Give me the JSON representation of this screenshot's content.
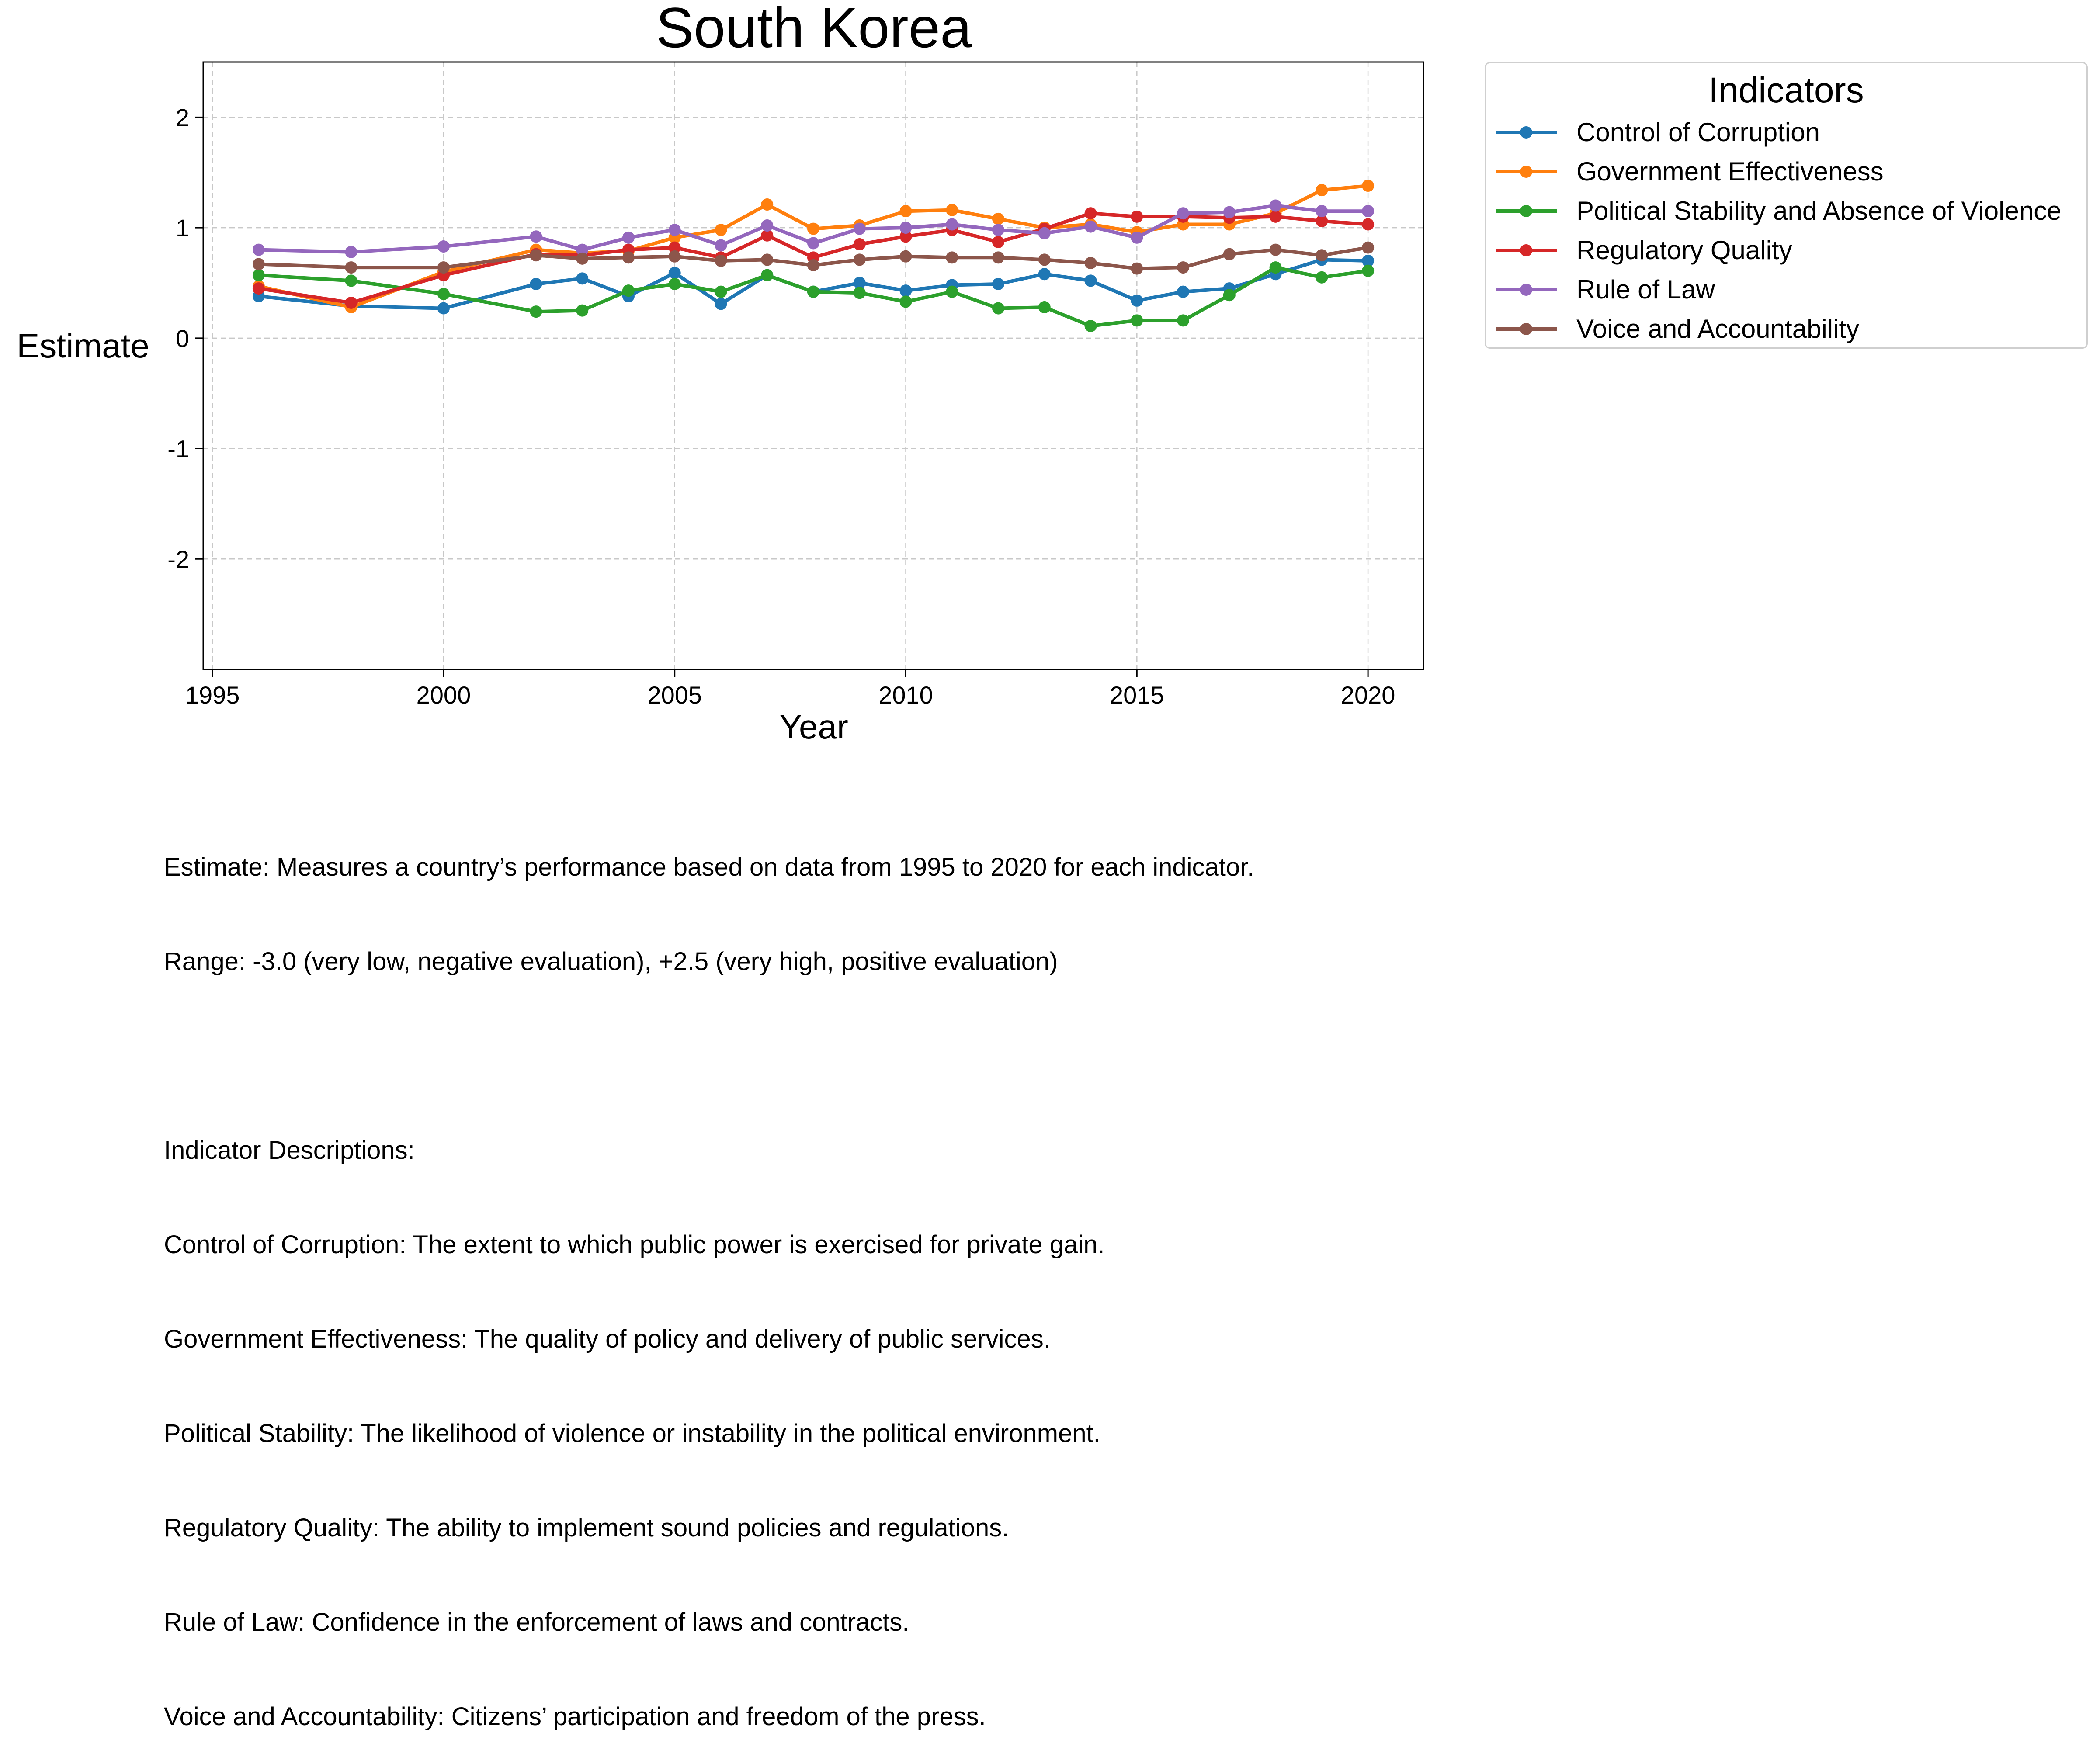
{
  "chart_data": {
    "type": "line",
    "title": "South Korea",
    "xlabel": "Year",
    "ylabel": "Estimate",
    "xlim": [
      1994.8,
      2021.2
    ],
    "ylim": [
      -3.0,
      2.5
    ],
    "x_ticks": [
      1995,
      2000,
      2005,
      2010,
      2015,
      2020
    ],
    "y_ticks": [
      -2,
      -1,
      0,
      1,
      2
    ],
    "x_tick_labels": [
      "1995",
      "2000",
      "2005",
      "2010",
      "2015",
      "2020"
    ],
    "y_tick_labels": [
      "-2",
      "-1",
      "0",
      "1",
      "2"
    ],
    "grid": true,
    "legend_title": "Indicators",
    "legend_placement": "outside-top-right",
    "x": [
      1996,
      1998,
      2000,
      2002,
      2003,
      2004,
      2005,
      2006,
      2007,
      2008,
      2009,
      2010,
      2011,
      2012,
      2013,
      2014,
      2015,
      2016,
      2017,
      2018,
      2019,
      2020
    ],
    "series": [
      {
        "name": "Control of Corruption",
        "color": "#1f77b4",
        "values": [
          0.38,
          0.29,
          0.27,
          0.49,
          0.54,
          0.38,
          0.59,
          0.31,
          0.57,
          0.42,
          0.5,
          0.43,
          0.48,
          0.49,
          0.58,
          0.52,
          0.34,
          0.42,
          0.45,
          0.58,
          0.71,
          0.7
        ]
      },
      {
        "name": "Government Effectiveness",
        "color": "#ff7f0e",
        "values": [
          0.47,
          0.28,
          0.6,
          0.8,
          0.77,
          0.79,
          0.91,
          0.98,
          1.21,
          0.99,
          1.02,
          1.15,
          1.16,
          1.08,
          1.0,
          1.03,
          0.96,
          1.03,
          1.03,
          1.13,
          1.34,
          1.38
        ]
      },
      {
        "name": "Political Stability and Absence of Violence",
        "color": "#2ca02c",
        "values": [
          0.57,
          0.52,
          0.4,
          0.24,
          0.25,
          0.43,
          0.49,
          0.42,
          0.57,
          0.42,
          0.41,
          0.33,
          0.42,
          0.27,
          0.28,
          0.11,
          0.16,
          0.16,
          0.39,
          0.64,
          0.55,
          0.61
        ]
      },
      {
        "name": "Regulatory Quality",
        "color": "#d62728",
        "values": [
          0.45,
          0.32,
          0.57,
          0.76,
          0.75,
          0.8,
          0.82,
          0.73,
          0.93,
          0.73,
          0.85,
          0.92,
          0.98,
          0.87,
          0.99,
          1.13,
          1.1,
          1.1,
          1.09,
          1.1,
          1.06,
          1.03
        ]
      },
      {
        "name": "Rule of Law",
        "color": "#9467bd",
        "values": [
          0.8,
          0.78,
          0.83,
          0.92,
          0.8,
          0.91,
          0.98,
          0.84,
          1.02,
          0.86,
          0.99,
          1.0,
          1.03,
          0.98,
          0.95,
          1.01,
          0.91,
          1.13,
          1.14,
          1.2,
          1.15,
          1.15
        ]
      },
      {
        "name": "Voice and Accountability",
        "color": "#8c564b",
        "values": [
          0.67,
          0.64,
          0.64,
          0.75,
          0.72,
          0.73,
          0.74,
          0.7,
          0.71,
          0.66,
          0.71,
          0.74,
          0.73,
          0.73,
          0.71,
          0.68,
          0.63,
          0.64,
          0.76,
          0.8,
          0.75,
          0.82
        ]
      }
    ]
  },
  "description": {
    "lines": [
      "Estimate: Measures a country’s performance based on data from 1995 to 2020 for each indicator.",
      "Range: -3.0 (very low, negative evaluation), +2.5 (very high, positive evaluation)",
      "",
      "Indicator Descriptions:",
      "Control of Corruption: The extent to which public power is exercised for private gain.",
      "Government Effectiveness: The quality of policy and delivery of public services.",
      "Political Stability: The likelihood of violence or instability in the political environment.",
      "Regulatory Quality: The ability to implement sound policies and regulations.",
      "Rule of Law: Confidence in the enforcement of laws and contracts.",
      "Voice and Accountability: Citizens’ participation and freedom of the press."
    ]
  }
}
